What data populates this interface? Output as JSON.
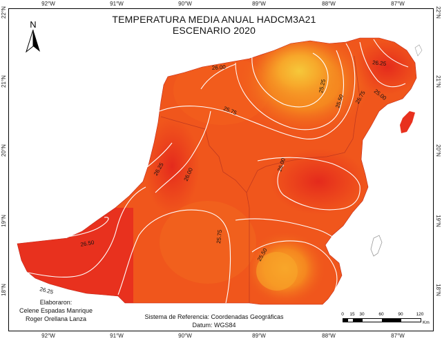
{
  "map": {
    "title_line1": "TEMPERATURA MEDIA ANUAL HADCM3A21",
    "title_line2": "ESCENARIO 2020",
    "north_label": "N",
    "longitude_ticks": [
      "92°W",
      "91°W",
      "90°W",
      "89°W",
      "88°W",
      "87°W"
    ],
    "latitude_ticks": [
      "22°N",
      "21°N",
      "20°N",
      "19°N",
      "18°N"
    ],
    "isotherm_labels": [
      "26.00",
      "25.25",
      "25.50",
      "25.75",
      "25.00",
      "26.25",
      "25.75",
      "26.25",
      "26.00",
      "26.00",
      "26.50",
      "25.75",
      "25.50",
      "26.25"
    ],
    "credits": {
      "heading": "Elaboraron:",
      "author1": "Celene Espadas Manrique",
      "author2": "Roger Orellana Lanza"
    },
    "crs": {
      "line1": "Sistema de Referencia: Coordenadas Geográficas",
      "line2": "Datum: WGS84"
    },
    "scale_bar": {
      "ticks": [
        "0",
        "15",
        "30",
        "60",
        "90",
        "120"
      ],
      "unit": "Km"
    },
    "colors": {
      "hot": "#e8311e",
      "warm": "#f0561c",
      "mid": "#f5791e",
      "cool": "#f9a62a",
      "coolest": "#f6c83a",
      "contour": "#ffffff",
      "sea": "#ffffff"
    }
  }
}
